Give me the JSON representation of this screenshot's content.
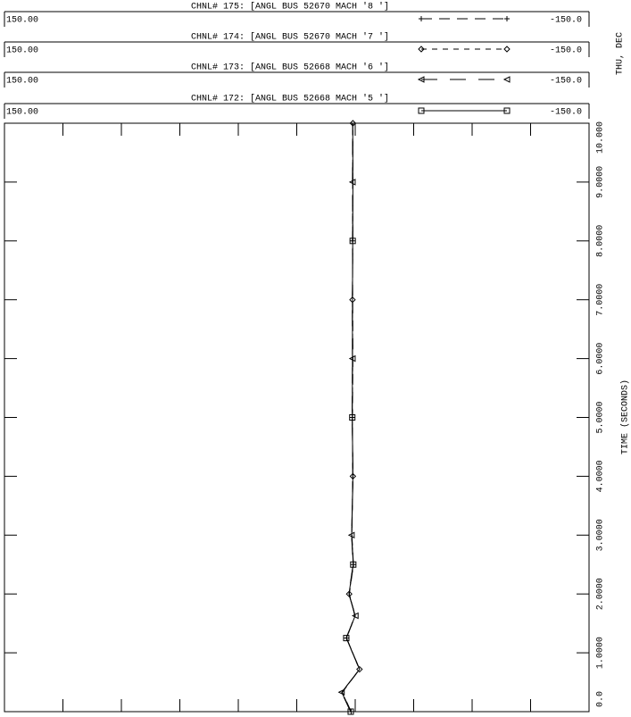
{
  "chart_data": {
    "type": "line",
    "x_label": "TIME (SECONDS)",
    "date_label": "THU, DEC",
    "x": [
      0,
      0.33,
      0.72,
      1.25,
      1.63,
      2.0,
      2.5,
      3.0,
      4.0,
      5.0,
      6.0,
      7.0,
      8.0,
      9.0,
      10.0
    ],
    "xlim": [
      0,
      10
    ],
    "xticks": [
      {
        "value": 0,
        "label": "0.0"
      },
      {
        "value": 1,
        "label": "1.0000"
      },
      {
        "value": 2,
        "label": "2.0000"
      },
      {
        "value": 3,
        "label": "3.0000"
      },
      {
        "value": 4,
        "label": "4.0000"
      },
      {
        "value": 5,
        "label": "5.0000"
      },
      {
        "value": 6,
        "label": "6.0000"
      },
      {
        "value": 7,
        "label": "7.0000"
      },
      {
        "value": 8,
        "label": "8.0000"
      },
      {
        "value": 9,
        "label": "9.0000"
      },
      {
        "value": 10,
        "label": "10.000"
      }
    ],
    "series": [
      {
        "name": "CHNL# 175: [ANGL BUS 52670 MACH '8 ']",
        "color": "#000000",
        "dash": "12 8",
        "marker": "plus",
        "ylim": [
          150,
          -150
        ],
        "yticks": [
          {
            "value": 150,
            "label": "150.00"
          },
          {
            "value": -150,
            "label": "-150.0"
          }
        ],
        "values": [
          -27.9,
          -23.4,
          -32.1,
          -25.6,
          -29.8,
          -27.0,
          -29.1,
          -28.3,
          -28.7,
          -28.6,
          -28.8,
          -28.7,
          -28.6,
          -28.8,
          -28.7
        ]
      },
      {
        "name": "CHNL# 174: [ANGL BUS 52670 MACH '7 ']",
        "color": "#000000",
        "dash": "6 6",
        "marker": "diamond",
        "ylim": [
          150,
          -150
        ],
        "yticks": [
          {
            "value": 150,
            "label": "150.00"
          },
          {
            "value": -150,
            "label": "-150.0"
          }
        ],
        "values": [
          -27.8,
          -23.2,
          -32.2,
          -25.5,
          -29.9,
          -26.9,
          -29.0,
          -28.2,
          -28.8,
          -28.5,
          -28.7,
          -28.6,
          -28.7,
          -28.7,
          -28.8
        ]
      },
      {
        "name": "CHNL# 173: [ANGL BUS 52668 MACH '6 ']",
        "color": "#000000",
        "dash": "18 14",
        "marker": "triangle",
        "ylim": [
          150,
          -150
        ],
        "yticks": [
          {
            "value": 150,
            "label": "150.00"
          },
          {
            "value": -150,
            "label": "-150.0"
          }
        ],
        "values": [
          -27.6,
          -23.0,
          -32.4,
          -25.3,
          -30.1,
          -26.7,
          -28.9,
          -28.1,
          -28.9,
          -28.4,
          -28.6,
          -28.5,
          -28.8,
          -28.6,
          -28.7
        ]
      },
      {
        "name": "CHNL# 172: [ANGL BUS 52668 MACH '5 ']",
        "color": "#000000",
        "dash": "none",
        "marker": "square",
        "ylim": [
          150,
          -150
        ],
        "yticks": [
          {
            "value": 150,
            "label": "150.00"
          },
          {
            "value": -150,
            "label": "-150.0"
          }
        ],
        "values": [
          -27.7,
          -23.1,
          -32.3,
          -25.4,
          -30.0,
          -26.8,
          -29.0,
          -28.2,
          -28.8,
          -28.5,
          -28.6,
          -28.6,
          -28.7,
          -28.8,
          -28.7
        ]
      }
    ]
  }
}
